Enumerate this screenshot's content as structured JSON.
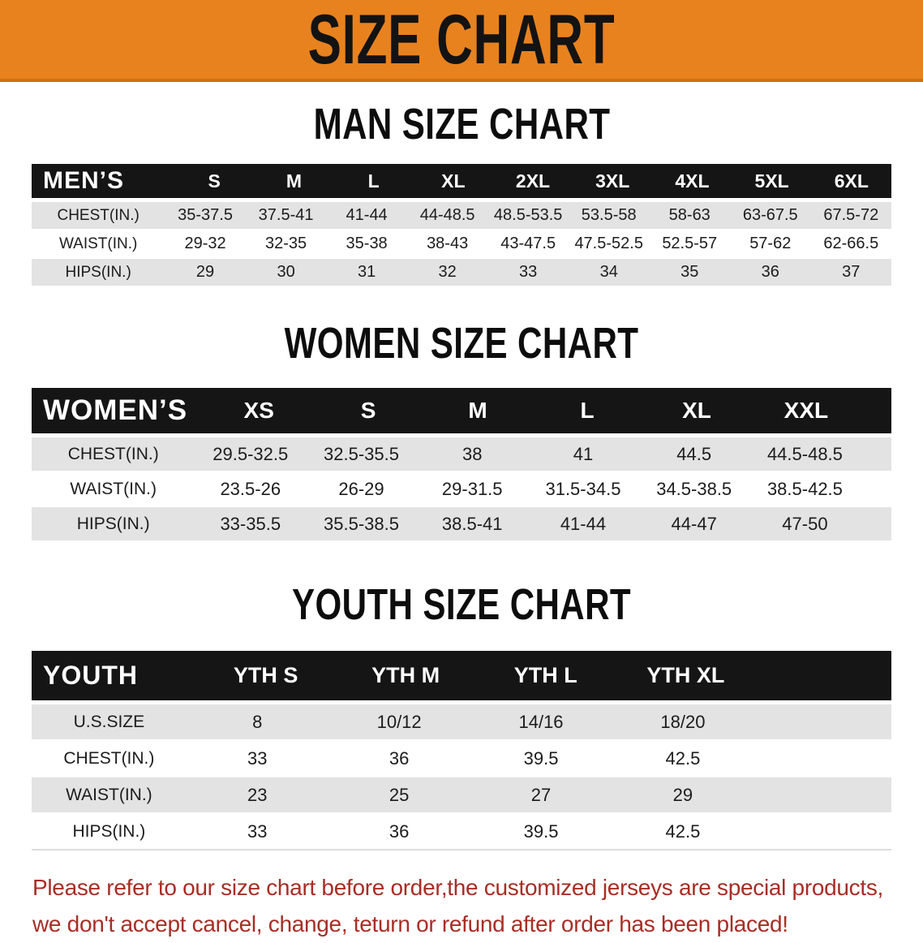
{
  "banner": {
    "title": "SIZE CHART"
  },
  "colors": {
    "accent_orange": "#e8821e",
    "header_black": "#151515",
    "row_gray": "#e3e3e3",
    "note_red": "#a72e25"
  },
  "mens": {
    "heading": "MAN SIZE CHART",
    "header": [
      "MEN’S",
      "S",
      "M",
      "L",
      "XL",
      "2XL",
      "3XL",
      "4XL",
      "5XL",
      "6XL"
    ],
    "rows": [
      {
        "label": "CHEST(IN.)",
        "values": [
          "35-37.5",
          "37.5-41",
          "41-44",
          "44-48.5",
          "48.5-53.5",
          "53.5-58",
          "58-63",
          "63-67.5",
          "67.5-72"
        ]
      },
      {
        "label": "WAIST(IN.)",
        "values": [
          "29-32",
          "32-35",
          "35-38",
          "38-43",
          "43-47.5",
          "47.5-52.5",
          "52.5-57",
          "57-62",
          "62-66.5"
        ]
      },
      {
        "label": "HIPS(IN.)",
        "values": [
          "29",
          "30",
          "31",
          "32",
          "33",
          "34",
          "35",
          "36",
          "37"
        ]
      }
    ]
  },
  "womens": {
    "heading": "WOMEN SIZE CHART",
    "header": [
      "WOMEN’S",
      "XS",
      "S",
      "M",
      "L",
      "XL",
      "XXL"
    ],
    "rows": [
      {
        "label": "CHEST(IN.)",
        "values": [
          "29.5-32.5",
          "32.5-35.5",
          "38",
          "41",
          "44.5",
          "44.5-48.5"
        ]
      },
      {
        "label": "WAIST(IN.)",
        "values": [
          "23.5-26",
          "26-29",
          "29-31.5",
          "31.5-34.5",
          "34.5-38.5",
          "38.5-42.5"
        ]
      },
      {
        "label": "HIPS(IN.)",
        "values": [
          "33-35.5",
          "35.5-38.5",
          "38.5-41",
          "41-44",
          "44-47",
          "47-50"
        ]
      }
    ]
  },
  "youth": {
    "heading": "YOUTH SIZE CHART",
    "header": [
      "YOUTH",
      "YTH S",
      "YTH M",
      "YTH L",
      "YTH XL"
    ],
    "rows": [
      {
        "label": "U.S.SIZE",
        "values": [
          "8",
          "10/12",
          "14/16",
          "18/20"
        ]
      },
      {
        "label": "CHEST(IN.)",
        "values": [
          "33",
          "36",
          "39.5",
          "42.5"
        ]
      },
      {
        "label": "WAIST(IN.)",
        "values": [
          "23",
          "25",
          "27",
          "29"
        ]
      },
      {
        "label": "HIPS(IN.)",
        "values": [
          "33",
          "36",
          "39.5",
          "42.5"
        ]
      }
    ]
  },
  "note": {
    "line1": "Please refer to our size chart before order,the customized jerseys are special products,",
    "line2": "we don't accept cancel, change, teturn or refund after order has been placed!"
  }
}
